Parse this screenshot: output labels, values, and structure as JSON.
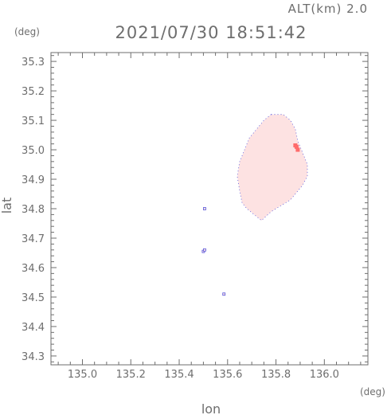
{
  "header": {
    "title": "2021/07/30 18:51:42",
    "alt_label": "ALT(km) 2.0"
  },
  "chart_data": {
    "type": "heatmap",
    "title": "2021/07/30 18:51:42",
    "xlabel": "lon",
    "ylabel": "lat",
    "x_unit": "(deg)",
    "y_unit": "(deg)",
    "xlim": [
      134.87,
      136.18
    ],
    "ylim": [
      34.27,
      35.33
    ],
    "x_ticks": [
      "135.0",
      "135.2",
      "135.4",
      "135.6",
      "135.8",
      "136.0"
    ],
    "y_ticks": [
      "34.3",
      "34.4",
      "34.5",
      "34.6",
      "34.7",
      "34.8",
      "34.9",
      "35.0",
      "35.1",
      "35.2",
      "35.3"
    ],
    "grid": false,
    "colors": {
      "fill": "#fde2e2",
      "edge": "#5555dd",
      "peak": "#ff6b6b",
      "axis": "#6e6e6e"
    },
    "echo_region": {
      "outline": [
        [
          135.78,
          35.12
        ],
        [
          135.83,
          35.12
        ],
        [
          135.86,
          35.1
        ],
        [
          135.88,
          35.07
        ],
        [
          135.89,
          35.03
        ],
        [
          135.91,
          34.99
        ],
        [
          135.93,
          34.95
        ],
        [
          135.93,
          34.91
        ],
        [
          135.91,
          34.88
        ],
        [
          135.88,
          34.85
        ],
        [
          135.86,
          34.83
        ],
        [
          135.82,
          34.81
        ],
        [
          135.78,
          34.79
        ],
        [
          135.74,
          34.76
        ],
        [
          135.71,
          34.78
        ],
        [
          135.68,
          34.8
        ],
        [
          135.66,
          34.82
        ],
        [
          135.65,
          34.86
        ],
        [
          135.64,
          34.91
        ],
        [
          135.65,
          34.96
        ],
        [
          135.67,
          35.0
        ],
        [
          135.69,
          35.04
        ],
        [
          135.72,
          35.07
        ],
        [
          135.75,
          35.1
        ]
      ]
    },
    "peak_cells": [
      [
        135.885,
        35.01
      ],
      [
        135.89,
        35.0
      ],
      [
        135.88,
        35.015
      ]
    ],
    "isolated_cells": [
      [
        135.505,
        34.8
      ],
      [
        135.5,
        34.655
      ],
      [
        135.505,
        34.66
      ],
      [
        135.585,
        34.51
      ]
    ]
  }
}
